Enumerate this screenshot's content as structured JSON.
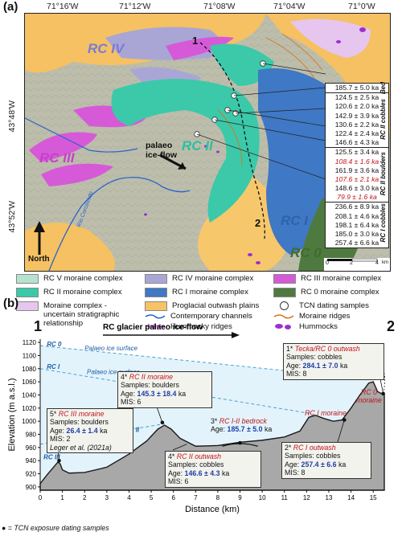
{
  "panel_a": {
    "label": "(a)",
    "coords_top": [
      "71°16'W",
      "71°12'W",
      "71°08'W",
      "71°04'W",
      "71°0'W"
    ],
    "coords_left": [
      "43°48'W",
      "43°52'W"
    ],
    "map_labels": {
      "rc_iv": "RC IV",
      "rc_iii": "RC III",
      "rc_ii": "RC II",
      "rc_i": "RC I",
      "rc_0": "RC 0",
      "flow": "palaeo ice-flow",
      "north": "North",
      "river": "Río Corcovado",
      "point1": "1",
      "point2": "2"
    },
    "scale": {
      "labels": [
        "0",
        "2",
        "4"
      ],
      "unit": "km"
    },
    "age_table": {
      "groups": [
        {
          "name": "Bed",
          "ages": [
            {
              "t": "185.7 ± 5.0 ka",
              "outlier": false
            }
          ]
        },
        {
          "name": "RC II cobbles",
          "ages": [
            {
              "t": "124.5 ± 2.5 ka",
              "outlier": false
            },
            {
              "t": "120.6 ± 2.0 ka",
              "outlier": false
            },
            {
              "t": "142.9 ± 3.9 ka",
              "outlier": false
            },
            {
              "t": "130.6 ± 2.2 ka",
              "outlier": false
            },
            {
              "t": "122.4 ± 2.4 ka",
              "outlier": false
            },
            {
              "t": "146.6 ± 4.3 ka",
              "outlier": false
            }
          ]
        },
        {
          "name": "RC II boulders",
          "ages": [
            {
              "t": "125.5 ± 3.4 ka",
              "outlier": false
            },
            {
              "t": "108.4 ± 1.6 ka",
              "outlier": true
            },
            {
              "t": "161.9 ± 3.6 ka",
              "outlier": false
            },
            {
              "t": "107.6 ± 2.1 ka",
              "outlier": true
            },
            {
              "t": "148.6 ± 3.0 ka",
              "outlier": false
            },
            {
              "t": "79.9 ± 1.6 ka",
              "outlier": true
            }
          ]
        },
        {
          "name": "RC I cobbles",
          "ages": [
            {
              "t": "236.6 ± 8.9 ka",
              "outlier": false
            },
            {
              "t": "208.1 ± 4.6 ka",
              "outlier": false
            },
            {
              "t": "198.1 ± 6.4 ka",
              "outlier": false
            },
            {
              "t": "185.0 ± 3.0 ka",
              "outlier": false
            },
            {
              "t": "257.4 ± 6.6 ka",
              "outlier": false
            }
          ]
        }
      ]
    }
  },
  "legend": {
    "items": [
      {
        "label": "RC V moraine complex",
        "color": "#b6e3cf",
        "kind": "box"
      },
      {
        "label": "RC IV moraine complex",
        "color": "#a9a6d6",
        "kind": "box"
      },
      {
        "label": "RC III moraine complex",
        "color": "#d65ad8",
        "kind": "box"
      },
      {
        "label": "RC II moraine complex",
        "color": "#3bc9a9",
        "kind": "box"
      },
      {
        "label": "RC I moraine complex",
        "color": "#3f78c4",
        "kind": "box"
      },
      {
        "label": "RC 0 moraine complex",
        "color": "#4f7a3f",
        "kind": "box"
      },
      {
        "label": "Moraine complex - uncertain stratigraphic relationship",
        "color": "#e6c6ee",
        "kind": "box"
      },
      {
        "label": "Proglacial outwash plains",
        "color": "#f7c367",
        "kind": "box"
      },
      {
        "label": "TCN dating samples",
        "color": "#ffffff",
        "kind": "circle"
      },
      {
        "label": "Contemporary channels",
        "color": "#2a63c9",
        "kind": "line"
      },
      {
        "label": "Moraine ridges",
        "color": "#d6771f",
        "kind": "line"
      },
      {
        "label": "Hummocky ridges",
        "color": "#b23dd1",
        "kind": "hummock-line"
      },
      {
        "label": "Hummocks",
        "color": "#9b2fd0",
        "kind": "blobs"
      }
    ]
  },
  "panel_b": {
    "label": "(b)",
    "end_label_left": "1",
    "end_label_right": "2",
    "title": "RC glacier palaeo ice-flow",
    "y_axis_label": "Elevation (m a.s.l.)",
    "x_axis_label": "Distance (km)",
    "surface_labels": [
      "RC 0",
      "Palaeo ice surface",
      "RC I",
      "Palaeo ice surface",
      "RC II",
      "RC III"
    ],
    "footnote": "● = TCN exposure dating samples",
    "annotations": {
      "a5": {
        "num": "5*",
        "title": "RC III moraine",
        "l1": "Samples: boulders",
        "age_label": "Age: ",
        "age": "26.4 ± 1.4",
        "age_unit": " ka",
        "l3": "MIS: 2",
        "l4": "Leger et al. (2021a)"
      },
      "a4top": {
        "num": "4*",
        "title": "RC II moraine",
        "l1": "Samples: boulders",
        "age_label": "Age: ",
        "age": "145.3 ± 18.4",
        "age_unit": " ka",
        "l3": "MIS: 6"
      },
      "a3": {
        "num": "3*",
        "title": "RC I-II bedrock",
        "age_label": "Age: ",
        "age": "185.7 ± 5.0",
        "age_unit": " ka"
      },
      "a1": {
        "num": "1*",
        "title": "Tecka/RC 0 outwash",
        "l1": "Samples: cobbles",
        "age_label": "Age: ",
        "age": "284.1 ± 7.0",
        "age_unit": " ka",
        "l3": "MIS: 8"
      },
      "a4bot": {
        "num": "4*",
        "title": "RC II outwash",
        "l1": "Samples: cobbles",
        "age_label": "Age: ",
        "age": "146.6 ± 4.3",
        "age_unit": " ka",
        "l3": "MIS: 6"
      },
      "a2": {
        "num": "2*",
        "title": "RC I outwash",
        "l1": "Samples: cobbles",
        "age_label": "Age: ",
        "age": "257.4 ± 6.6",
        "age_unit": " ka",
        "l3": "MIS: 8"
      },
      "rc_i_moraine": "RC I moraine",
      "rc_0_moraine": "RC 0 moraine"
    }
  },
  "chart_data": {
    "type": "area",
    "title": "RC glacier palaeo ice-flow",
    "xlabel": "Distance (km)",
    "ylabel": "Elevation (m a.s.l.)",
    "xlim": [
      0,
      15.5
    ],
    "ylim": [
      895,
      1125
    ],
    "x_ticks": [
      0,
      1,
      2,
      3,
      4,
      5,
      6,
      7,
      8,
      9,
      10,
      11,
      12,
      13,
      14,
      15
    ],
    "y_ticks": [
      900,
      920,
      940,
      960,
      980,
      1000,
      1020,
      1040,
      1060,
      1080,
      1100,
      1120
    ],
    "grid": false,
    "series": [
      {
        "name": "",
        "x": [
          0,
          0.3,
          0.6,
          0.8,
          0.9,
          1.0,
          1.3,
          2.0,
          3.0,
          4.0,
          4.8,
          5.3,
          5.6,
          5.9,
          6.3,
          7.0,
          8.0,
          9.0,
          10.0,
          11.0,
          11.7,
          12.1,
          12.4,
          12.8,
          13.2,
          13.6,
          14.0,
          14.4,
          14.8,
          15.0,
          15.2,
          15.5
        ],
        "y": [
          905,
          918,
          930,
          938,
          935,
          926,
          921,
          922,
          930,
          950,
          970,
          988,
          994,
          988,
          974,
          962,
          963,
          968,
          971,
          976,
          985,
          1006,
          1009,
          1004,
          1000,
          1002,
          1020,
          1040,
          1058,
          1060,
          1045,
          1040
        ]
      },
      {
        "name": "RC 0",
        "x": [
          0,
          15.1
        ],
        "y": [
          1115,
          1063
        ]
      },
      {
        "name": "RC I",
        "x": [
          0,
          12.3
        ],
        "y": [
          1080,
          1011
        ]
      },
      {
        "name": "RC II",
        "x": [
          0,
          5.6
        ],
        "y": [
          965,
          996
        ]
      }
    ],
    "samples": [
      {
        "id": "5*",
        "x": 0.85,
        "y": 940
      },
      {
        "id": "4*",
        "x": 5.5,
        "y": 998
      },
      {
        "id": "3*",
        "x": 9.0,
        "y": 967
      },
      {
        "id": "2*",
        "x": 13.7,
        "y": 1002
      },
      {
        "id": "1*",
        "x": 15.45,
        "y": 1042
      }
    ]
  }
}
